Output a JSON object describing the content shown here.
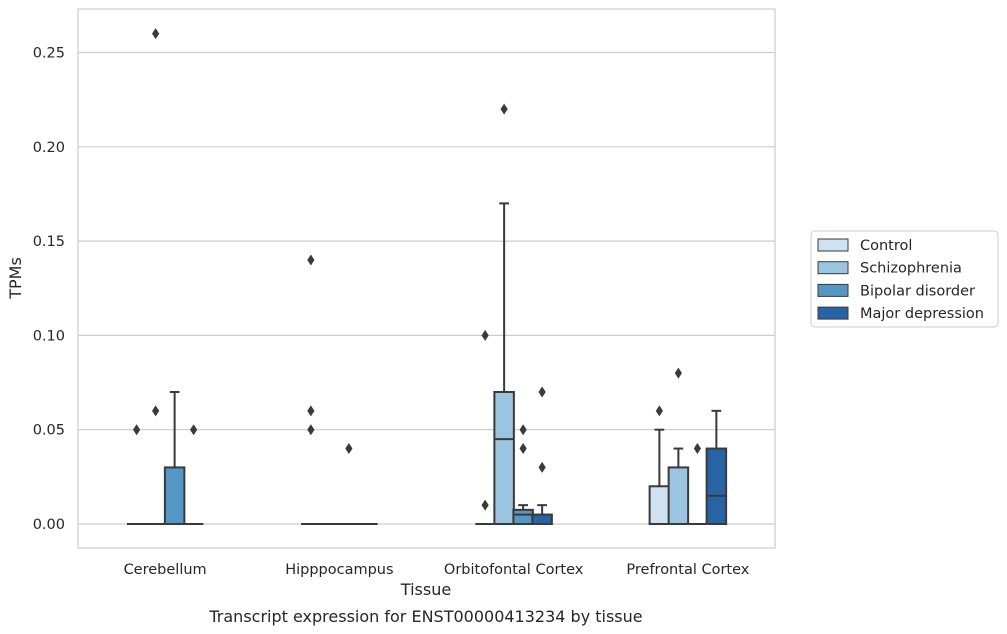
{
  "chart_data": {
    "type": "box",
    "xlabel": "Tissue",
    "ylabel": "TPMs",
    "caption": "Transcript expression for ENST00000413234 by tissue",
    "ylim": [
      -0.0125,
      0.2735
    ],
    "yticks": [
      0.0,
      0.05,
      0.1,
      0.15,
      0.2,
      0.25
    ],
    "ytick_labels": [
      "0.00",
      "0.05",
      "0.10",
      "0.15",
      "0.20",
      "0.25"
    ],
    "grid": "horizontal",
    "legend_position": "right",
    "categories": [
      "Cerebellum",
      "Hipppocampus",
      "Orbitofontal Cortex",
      "Prefrontal Cortex"
    ],
    "series": [
      {
        "name": "Control",
        "color": "#d0e1f2",
        "boxes": [
          {
            "q1": 0,
            "median": 0,
            "q3": 0,
            "whisker_low": 0,
            "whisker_high": 0,
            "outliers": [
              0.05
            ]
          },
          {
            "q1": 0,
            "median": 0,
            "q3": 0,
            "whisker_low": 0,
            "whisker_high": 0,
            "outliers": [
              0.05,
              0.06,
              0.14
            ]
          },
          {
            "q1": 0,
            "median": 0,
            "q3": 0,
            "whisker_low": 0,
            "whisker_high": 0,
            "outliers": [
              0.01,
              0.1
            ]
          },
          {
            "q1": 0,
            "median": 0,
            "q3": 0.02,
            "whisker_low": 0,
            "whisker_high": 0.05,
            "outliers": [
              0.06
            ]
          }
        ]
      },
      {
        "name": "Schizophrenia",
        "color": "#9ac4df",
        "boxes": [
          {
            "q1": 0,
            "median": 0,
            "q3": 0,
            "whisker_low": 0,
            "whisker_high": 0,
            "outliers": [
              0.06,
              0.26
            ]
          },
          {
            "q1": 0,
            "median": 0,
            "q3": 0,
            "whisker_low": 0,
            "whisker_high": 0,
            "outliers": []
          },
          {
            "q1": 0,
            "median": 0.045,
            "q3": 0.07,
            "whisker_low": 0,
            "whisker_high": 0.17,
            "outliers": [
              0.22
            ]
          },
          {
            "q1": 0,
            "median": 0,
            "q3": 0.03,
            "whisker_low": 0,
            "whisker_high": 0.04,
            "outliers": [
              0.08
            ]
          }
        ]
      },
      {
        "name": "Bipolar disorder",
        "color": "#5496c6",
        "boxes": [
          {
            "q1": 0,
            "median": 0,
            "q3": 0.03,
            "whisker_low": 0,
            "whisker_high": 0.07,
            "outliers": []
          },
          {
            "q1": 0,
            "median": 0,
            "q3": 0,
            "whisker_low": 0,
            "whisker_high": 0,
            "outliers": [
              0.04
            ]
          },
          {
            "q1": 0,
            "median": 0.005,
            "q3": 0.0075,
            "whisker_low": 0,
            "whisker_high": 0.01,
            "outliers": [
              0.04,
              0.05
            ]
          },
          {
            "q1": 0,
            "median": 0,
            "q3": 0,
            "whisker_low": 0,
            "whisker_high": 0,
            "outliers": [
              0.04
            ]
          }
        ]
      },
      {
        "name": "Major depression",
        "color": "#2764a5",
        "boxes": [
          {
            "q1": 0,
            "median": 0,
            "q3": 0,
            "whisker_low": 0,
            "whisker_high": 0,
            "outliers": [
              0.05
            ]
          },
          {
            "q1": 0,
            "median": 0,
            "q3": 0,
            "whisker_low": 0,
            "whisker_high": 0,
            "outliers": []
          },
          {
            "q1": 0,
            "median": 0,
            "q3": 0.005,
            "whisker_low": 0,
            "whisker_high": 0.01,
            "outliers": [
              0.03,
              0.07
            ]
          },
          {
            "q1": 0,
            "median": 0.015,
            "q3": 0.04,
            "whisker_low": 0,
            "whisker_high": 0.06,
            "outliers": []
          }
        ]
      }
    ]
  },
  "colors": {
    "grid": "#cccccc",
    "axes_frame": "#cccccc",
    "box_edge": "#3a3a3a",
    "text": "#262626"
  }
}
